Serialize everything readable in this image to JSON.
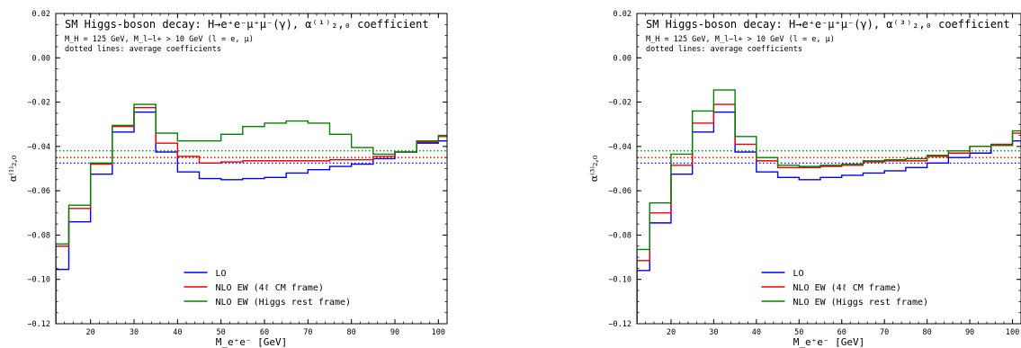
{
  "chart_data": [
    {
      "type": "line",
      "title": "SM Higgs-boson decay: H→e⁺e⁻μ⁺μ⁻(γ), α⁽¹⁾₂,₀ coefficient",
      "subtitle_lines": [
        "M_H = 125 GeV, M_l−l+ > 10 GeV (l = e, μ)",
        "dotted lines: average coefficients"
      ],
      "xlabel": "M_e⁺e⁻ [GeV]",
      "ylabel": "α⁽¹⁾₂,₀",
      "xlim": [
        12,
        102
      ],
      "ylim": [
        -0.12,
        0.02
      ],
      "xticks": [
        20,
        30,
        40,
        50,
        60,
        70,
        80,
        90,
        100
      ],
      "xtick_labels": [
        "20",
        "30",
        "40",
        "50",
        "60",
        "70",
        "80",
        "90",
        "100"
      ],
      "yticks": [
        -0.12,
        -0.1,
        -0.08,
        -0.06,
        -0.04,
        -0.02,
        0.0,
        0.02
      ],
      "ytick_labels": [
        "−0.12",
        "−0.10",
        "−0.08",
        "−0.06",
        "−0.04",
        "−0.02",
        "0.00",
        "0.02"
      ],
      "bin_edges": [
        12,
        15,
        20,
        25,
        30,
        35,
        40,
        45,
        50,
        55,
        60,
        65,
        70,
        75,
        80,
        85,
        90,
        95,
        100,
        102
      ],
      "series": [
        {
          "name": "LO",
          "color": "#0000ee",
          "values": [
            -0.0955,
            -0.074,
            -0.0525,
            -0.0335,
            -0.0245,
            -0.0425,
            -0.0515,
            -0.0545,
            -0.055,
            -0.0545,
            -0.054,
            -0.052,
            -0.0505,
            -0.049,
            -0.048,
            -0.0455,
            -0.0425,
            -0.0385,
            -0.0375
          ],
          "average": -0.0475
        },
        {
          "name": "NLO EW (4ℓ CM frame)",
          "color": "#ee0000",
          "values": [
            -0.085,
            -0.068,
            -0.048,
            -0.031,
            -0.0225,
            -0.0385,
            -0.0445,
            -0.0475,
            -0.047,
            -0.0465,
            -0.0465,
            -0.0465,
            -0.0465,
            -0.046,
            -0.046,
            -0.0445,
            -0.0425,
            -0.038,
            -0.0355
          ],
          "average": -0.045
        },
        {
          "name": "NLO EW (Higgs rest frame)",
          "color": "#008000",
          "values": [
            -0.084,
            -0.0665,
            -0.0475,
            -0.0305,
            -0.021,
            -0.034,
            -0.0375,
            -0.0375,
            -0.0345,
            -0.031,
            -0.0295,
            -0.0285,
            -0.0295,
            -0.0345,
            -0.0405,
            -0.0435,
            -0.0425,
            -0.0375,
            -0.035
          ],
          "average": -0.042
        }
      ],
      "legend_position": "lower center"
    },
    {
      "type": "line",
      "title": "SM Higgs-boson decay: H→e⁺e⁻μ⁺μ⁻(γ), α⁽³⁾₂,₀ coefficient",
      "subtitle_lines": [
        "M_H = 125 GeV, M_l−l+ > 10 GeV (l = e, μ)",
        "dotted lines: average coefficients"
      ],
      "xlabel": "M_e⁺e⁻ [GeV]",
      "ylabel": "α⁽³⁾₂,₀",
      "xlim": [
        12,
        102
      ],
      "ylim": [
        -0.12,
        0.02
      ],
      "xticks": [
        20,
        30,
        40,
        50,
        60,
        70,
        80,
        90,
        100
      ],
      "xtick_labels": [
        "20",
        "30",
        "40",
        "50",
        "60",
        "70",
        "80",
        "90",
        "100"
      ],
      "yticks": [
        -0.12,
        -0.1,
        -0.08,
        -0.06,
        -0.04,
        -0.02,
        0.0,
        0.02
      ],
      "ytick_labels": [
        "−0.12",
        "−0.10",
        "−0.08",
        "−0.06",
        "−0.04",
        "−0.02",
        "0.00",
        "0.02"
      ],
      "bin_edges": [
        12,
        15,
        20,
        25,
        30,
        35,
        40,
        45,
        50,
        55,
        60,
        65,
        70,
        75,
        80,
        85,
        90,
        95,
        100,
        102
      ],
      "series": [
        {
          "name": "LO",
          "color": "#0000ee",
          "values": [
            -0.096,
            -0.0745,
            -0.0525,
            -0.0335,
            -0.0245,
            -0.0425,
            -0.0515,
            -0.054,
            -0.055,
            -0.054,
            -0.053,
            -0.052,
            -0.051,
            -0.0495,
            -0.0475,
            -0.045,
            -0.043,
            -0.0395,
            -0.0375
          ],
          "average": -0.0475
        },
        {
          "name": "NLO EW (4ℓ CM frame)",
          "color": "#ee0000",
          "values": [
            -0.0915,
            -0.07,
            -0.0485,
            -0.0295,
            -0.021,
            -0.039,
            -0.0465,
            -0.0495,
            -0.0495,
            -0.049,
            -0.0485,
            -0.047,
            -0.0465,
            -0.0465,
            -0.0445,
            -0.043,
            -0.04,
            -0.039,
            -0.034
          ],
          "average": -0.045
        },
        {
          "name": "NLO EW (Higgs rest frame)",
          "color": "#008000",
          "values": [
            -0.0865,
            -0.0655,
            -0.0435,
            -0.024,
            -0.0145,
            -0.0355,
            -0.045,
            -0.0485,
            -0.049,
            -0.0485,
            -0.048,
            -0.0465,
            -0.046,
            -0.0455,
            -0.044,
            -0.042,
            -0.04,
            -0.0395,
            -0.033
          ],
          "average": -0.042
        }
      ],
      "legend_position": "lower center"
    }
  ]
}
